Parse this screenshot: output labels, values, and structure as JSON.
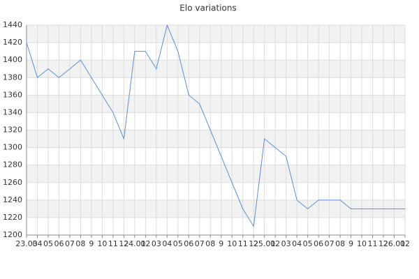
{
  "chart_data": {
    "type": "line",
    "title": "Elo variations",
    "categories": [
      "23.03",
      "04",
      "05",
      "06",
      "07",
      "08",
      "9",
      "10",
      "11",
      "12",
      "24.01",
      "02",
      "03",
      "04",
      "05",
      "06",
      "07",
      "08",
      "9",
      "10",
      "11",
      "12",
      "25.01",
      "02",
      "03",
      "04",
      "05",
      "06",
      "07",
      "08",
      "9",
      "10",
      "11",
      "12",
      "26.01",
      "02"
    ],
    "series": [
      {
        "name": "Elo",
        "color": "#5b8fd9",
        "values": [
          1420,
          1380,
          1390,
          1380,
          1390,
          1400,
          1380,
          1360,
          1340,
          1310,
          1410,
          1410,
          1390,
          1440,
          1410,
          1360,
          1350,
          1320,
          1290,
          1260,
          1230,
          1210,
          1310,
          1300,
          1290,
          1240,
          1230,
          1240,
          1240,
          1240,
          1230,
          1230,
          1230,
          1230,
          1230,
          1230
        ]
      }
    ],
    "ylim": [
      1200,
      1440
    ],
    "yticks": [
      1200,
      1220,
      1240,
      1260,
      1280,
      1300,
      1320,
      1340,
      1360,
      1380,
      1400,
      1420,
      1440
    ],
    "grid": true,
    "band_color": "#f2f2f2"
  }
}
